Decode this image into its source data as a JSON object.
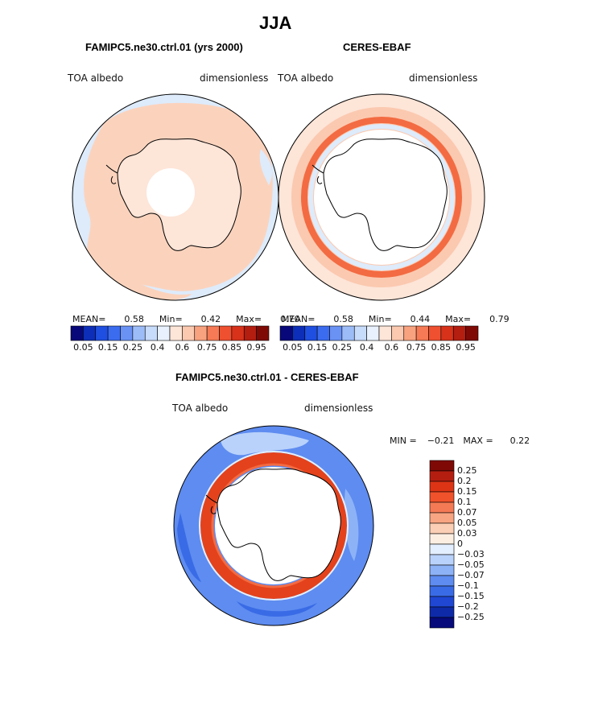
{
  "figure": {
    "season": "JJA",
    "difference_title": "FAMIPC5.ne30.ctrl.01 - CERES-EBAF"
  },
  "panels": [
    {
      "title": "FAMIPC5.ne30.ctrl.01 (yrs 2000)",
      "variable": "TOA albedo",
      "units": "dimensionless",
      "mean_label": "MEAN=",
      "mean_value": "0.58",
      "min_label": "Min=",
      "min_value": "0.42",
      "max_label": "Max=",
      "max_value": "0.70"
    },
    {
      "title": "CERES-EBAF",
      "variable": "TOA albedo",
      "units": "dimensionless",
      "mean_label": "MEAN=",
      "mean_value": "0.58",
      "min_label": "Min=",
      "min_value": "0.44",
      "max_label": "Max=",
      "max_value": "0.79"
    }
  ],
  "difference": {
    "variable": "TOA albedo",
    "units": "dimensionless",
    "min_label": "MIN =",
    "min_value": "−0.21",
    "max_label": "MAX =",
    "max_value": "0.22"
  },
  "colorbar_top": {
    "tick_labels": [
      "0.05",
      "0.15",
      "0.25",
      "0.4",
      "0.6",
      "0.75",
      "0.85",
      "0.95"
    ],
    "colors": [
      "#08087a",
      "#0d2eb8",
      "#1f4fe0",
      "#3b6cf0",
      "#6a92f5",
      "#9cbcf8",
      "#c7dbfb",
      "#e8f1fd",
      "#fde5d8",
      "#fbc9b0",
      "#f9a27f",
      "#f57a55",
      "#ef5030",
      "#d8321b",
      "#b41e10",
      "#7f0a05"
    ]
  },
  "colorbar_diff": {
    "labels": [
      "0.25",
      "0.2",
      "0.15",
      "0.1",
      "0.07",
      "0.05",
      "0.03",
      "0",
      "−0.03",
      "−0.05",
      "−0.07",
      "−0.1",
      "−0.15",
      "−0.2",
      "−0.25"
    ],
    "colors": [
      "#7f0a05",
      "#b41e10",
      "#dd3415",
      "#f0522b",
      "#f47a55",
      "#f8a583",
      "#fbcfb5",
      "#fdeee2",
      "#e3efff",
      "#b9d2fb",
      "#8db2f6",
      "#5e8cf0",
      "#3a6be6",
      "#1f47d4",
      "#0e2aa8",
      "#070a7a"
    ]
  },
  "map_colors": {
    "peach": "#fbd3bd",
    "light_blue": "#ddebfb",
    "orange_ring": "#f36b42",
    "red_ring": "#e4421c",
    "blue_ocean": "#4f7fe8",
    "deep_blue": "#2f5fe0",
    "coast": "#000000"
  }
}
